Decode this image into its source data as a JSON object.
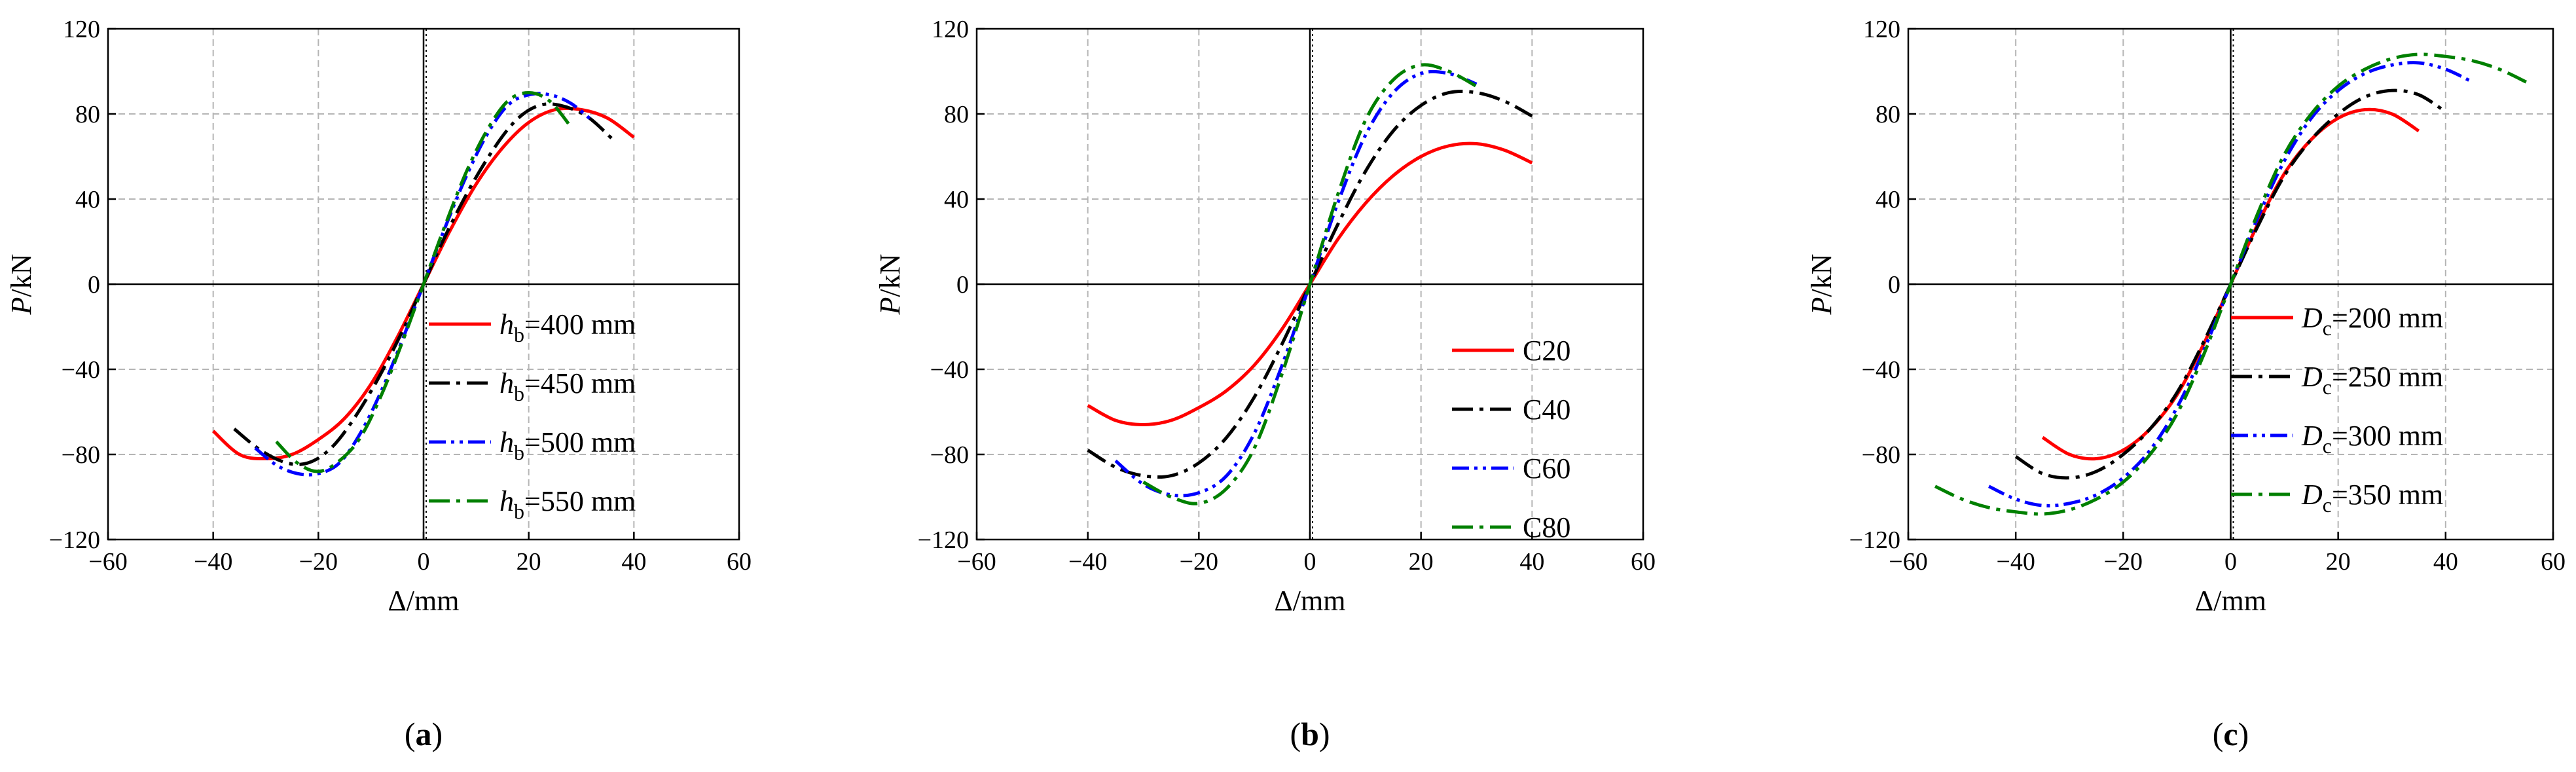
{
  "chart_data": [
    {
      "type": "line",
      "panel_label": "a",
      "xlabel": "Δ/mm",
      "ylabel": "P/kN",
      "xlim": [
        -60,
        60
      ],
      "ylim": [
        -120,
        120
      ],
      "xticks": [
        -60,
        -40,
        -20,
        0,
        20,
        40,
        60
      ],
      "yticks": [
        -120,
        -80,
        -40,
        0,
        40,
        80,
        120
      ],
      "grid": true,
      "legend_position": "bottom-right",
      "series": [
        {
          "name": "h",
          "sub": "b",
          "suffix": "=400 mm",
          "color": "#ff0000",
          "style": "solid",
          "x": [
            -40,
            -35,
            -30,
            -25,
            -20,
            -15,
            -10,
            -5,
            0,
            5,
            10,
            15,
            20,
            25,
            30,
            35,
            40
          ],
          "y": [
            -69,
            -80,
            -82,
            -80,
            -73,
            -63,
            -47,
            -25,
            0,
            25,
            47,
            64,
            76,
            82,
            82,
            78,
            69
          ]
        },
        {
          "name": "h",
          "sub": "b",
          "suffix": "=450 mm",
          "color": "#000000",
          "style": "dashdot",
          "x": [
            -36,
            -31,
            -26,
            -22,
            -18,
            -14,
            -9,
            -4,
            0,
            4,
            9,
            14,
            18,
            22,
            26,
            31,
            36
          ],
          "y": [
            -68,
            -78,
            -84,
            -84,
            -78,
            -66,
            -46,
            -22,
            0,
            22,
            46,
            66,
            78,
            84,
            84,
            79,
            68
          ]
        },
        {
          "name": "h",
          "sub": "b",
          "suffix": "=500 mm",
          "color": "#0000ff",
          "style": "dashdotdot",
          "x": [
            -32,
            -28,
            -24,
            -20,
            -16,
            -12,
            -8,
            -4,
            0,
            4,
            8,
            12,
            16,
            20,
            24,
            28,
            32
          ],
          "y": [
            -77,
            -85,
            -89,
            -89,
            -84,
            -70,
            -50,
            -26,
            0,
            26,
            50,
            70,
            84,
            89,
            89,
            85,
            77
          ]
        },
        {
          "name": "h",
          "sub": "b",
          "suffix": "=550 mm",
          "color": "#008000",
          "style": "dashdot",
          "x": [
            -28,
            -24,
            -20,
            -16,
            -12,
            -8,
            -4,
            0,
            4,
            8,
            12,
            16,
            20,
            24,
            28
          ],
          "y": [
            -74,
            -84,
            -88,
            -83,
            -72,
            -52,
            -27,
            0,
            27,
            52,
            72,
            86,
            90,
            86,
            74
          ]
        }
      ]
    },
    {
      "type": "line",
      "panel_label": "b",
      "xlabel": "Δ/mm",
      "ylabel": "P/kN",
      "xlim": [
        -60,
        60
      ],
      "ylim": [
        -120,
        120
      ],
      "xticks": [
        -60,
        -40,
        -20,
        0,
        20,
        40,
        60
      ],
      "yticks": [
        -120,
        -80,
        -40,
        0,
        40,
        80,
        120
      ],
      "grid": true,
      "legend_position": "bottom-right",
      "series": [
        {
          "name": "C20",
          "sub": "",
          "suffix": "",
          "color": "#ff0000",
          "style": "solid",
          "x": [
            -40,
            -35,
            -30,
            -25,
            -20,
            -15,
            -10,
            -5,
            0,
            5,
            10,
            15,
            20,
            25,
            30,
            35,
            40
          ],
          "y": [
            -57,
            -64,
            -66,
            -64,
            -58,
            -50,
            -38,
            -21,
            0,
            21,
            38,
            51,
            60,
            65,
            66,
            63,
            57
          ]
        },
        {
          "name": "C40",
          "sub": "",
          "suffix": "",
          "color": "#000000",
          "style": "dashdot",
          "x": [
            -40,
            -35,
            -30,
            -25,
            -20,
            -15,
            -10,
            -5,
            0,
            5,
            10,
            15,
            20,
            25,
            30,
            35,
            40
          ],
          "y": [
            -78,
            -86,
            -90,
            -90,
            -84,
            -72,
            -53,
            -28,
            0,
            28,
            53,
            72,
            84,
            90,
            90,
            86,
            79
          ]
        },
        {
          "name": "C60",
          "sub": "",
          "suffix": "",
          "color": "#0000ff",
          "style": "dashdotdot",
          "x": [
            -35,
            -30,
            -25,
            -20,
            -15,
            -10,
            -5,
            0,
            5,
            10,
            15,
            20,
            25,
            30
          ],
          "y": [
            -83,
            -94,
            -99,
            -98,
            -90,
            -70,
            -38,
            0,
            38,
            70,
            90,
            99,
            99,
            94
          ]
        },
        {
          "name": "C80",
          "sub": "",
          "suffix": "",
          "color": "#008000",
          "style": "dashdot",
          "x": [
            -30,
            -25,
            -20,
            -15,
            -10,
            -5,
            0,
            5,
            10,
            15,
            20,
            25,
            30
          ],
          "y": [
            -93,
            -100,
            -103,
            -96,
            -77,
            -42,
            0,
            42,
            77,
            96,
            103,
            100,
            93
          ]
        }
      ]
    },
    {
      "type": "line",
      "panel_label": "c",
      "xlabel": "Δ/mm",
      "ylabel": "P/kN",
      "xlim": [
        -60,
        60
      ],
      "ylim": [
        -120,
        120
      ],
      "xticks": [
        -60,
        -40,
        -20,
        0,
        20,
        40,
        60
      ],
      "yticks": [
        -120,
        -80,
        -40,
        0,
        40,
        80,
        120
      ],
      "grid": true,
      "legend_position": "bottom-right",
      "series": [
        {
          "name": "D",
          "sub": "c",
          "suffix": "=200 mm",
          "color": "#ff0000",
          "style": "solid",
          "x": [
            -35,
            -30,
            -25,
            -20,
            -15,
            -10,
            -5,
            0,
            5,
            10,
            15,
            20,
            25,
            30,
            35
          ],
          "y": [
            -72,
            -80,
            -82,
            -78,
            -68,
            -52,
            -28,
            0,
            28,
            52,
            68,
            78,
            82,
            80,
            72
          ]
        },
        {
          "name": "D",
          "sub": "c",
          "suffix": "=250 mm",
          "color": "#000000",
          "style": "dashdot",
          "x": [
            -40,
            -35,
            -30,
            -25,
            -20,
            -15,
            -10,
            -5,
            0,
            5,
            10,
            15,
            20,
            25,
            30,
            35,
            40
          ],
          "y": [
            -81,
            -89,
            -91,
            -88,
            -80,
            -68,
            -51,
            -27,
            0,
            27,
            51,
            68,
            80,
            88,
            91,
            89,
            81
          ]
        },
        {
          "name": "D",
          "sub": "c",
          "suffix": "=300 mm",
          "color": "#0000ff",
          "style": "dashdotdot",
          "x": [
            -45,
            -40,
            -35,
            -30,
            -25,
            -20,
            -15,
            -10,
            -5,
            0,
            5,
            10,
            15,
            20,
            25,
            30,
            35,
            40,
            45
          ],
          "y": [
            -95,
            -101,
            -104,
            -103,
            -99,
            -91,
            -78,
            -58,
            -31,
            0,
            31,
            58,
            78,
            91,
            99,
            103,
            104,
            101,
            95
          ]
        },
        {
          "name": "D",
          "sub": "c",
          "suffix": "=350 mm",
          "color": "#008000",
          "style": "dashdot",
          "x": [
            -55,
            -50,
            -45,
            -40,
            -35,
            -30,
            -25,
            -20,
            -15,
            -10,
            -5,
            0,
            5,
            10,
            15,
            20,
            25,
            30,
            35,
            40,
            45,
            50,
            55
          ],
          "y": [
            -95,
            -101,
            -105,
            -107,
            -108,
            -106,
            -101,
            -93,
            -80,
            -61,
            -33,
            0,
            33,
            61,
            80,
            93,
            101,
            106,
            108,
            107,
            105,
            101,
            95
          ]
        }
      ]
    }
  ]
}
